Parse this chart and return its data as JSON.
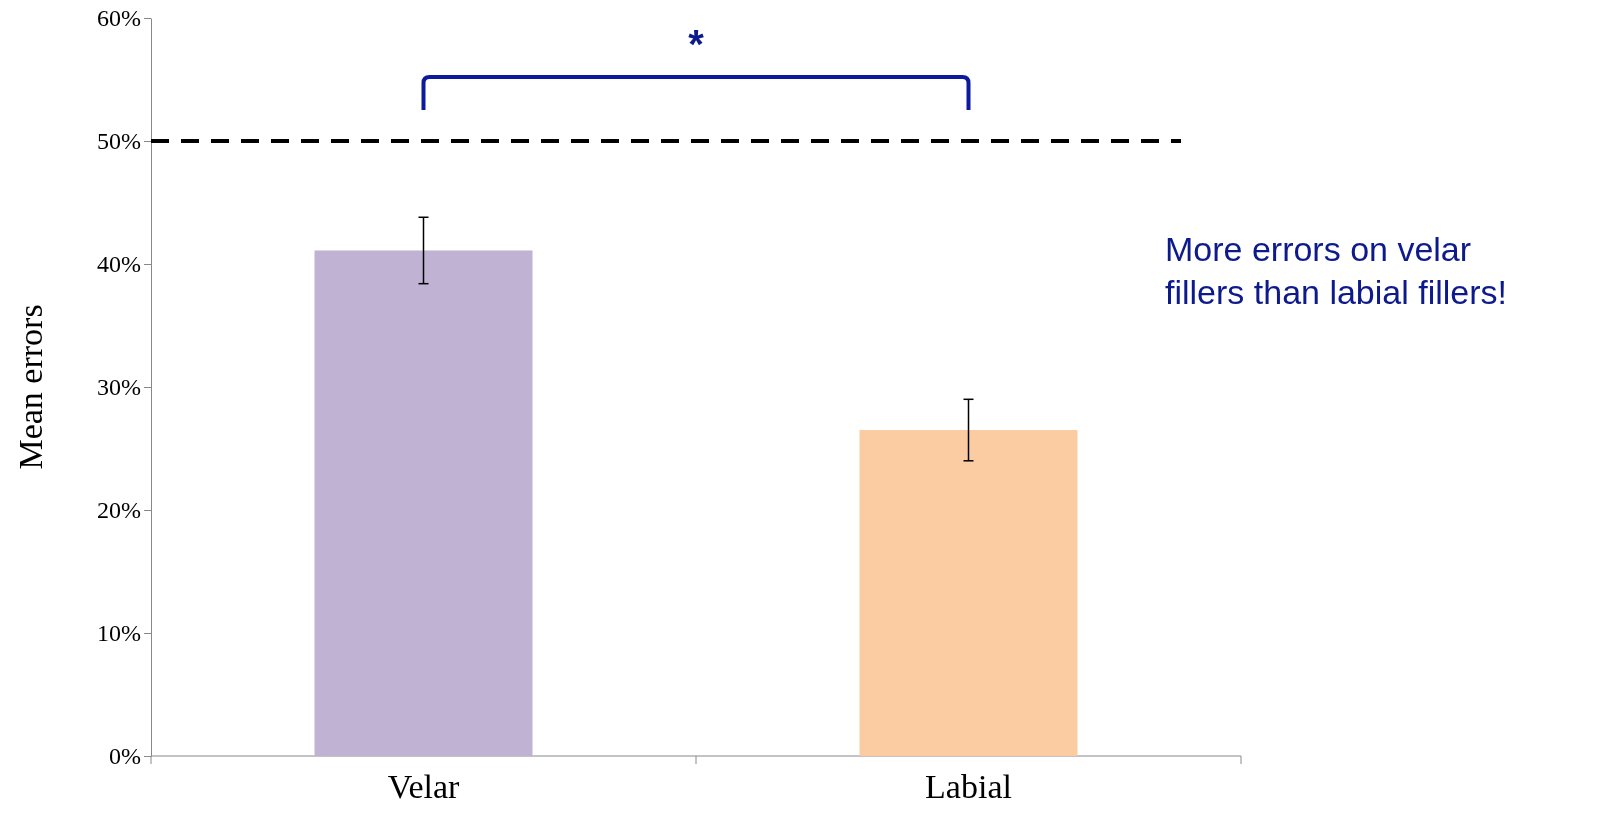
{
  "chart_data": {
    "type": "bar",
    "ylabel": "Mean errors",
    "categories": [
      "Velar",
      "Labial"
    ],
    "values": [
      41.1,
      26.5
    ],
    "colors": [
      "#c0b2d3",
      "#fbcba2"
    ],
    "errors": [
      2.7,
      2.5
    ],
    "ylim": [
      0,
      60
    ],
    "yticks": [
      {
        "value": 0,
        "label": "0%"
      },
      {
        "value": 10,
        "label": "10%"
      },
      {
        "value": 20,
        "label": "20%"
      },
      {
        "value": 30,
        "label": "30%"
      },
      {
        "value": 40,
        "label": "40%"
      },
      {
        "value": 50,
        "label": "50%"
      },
      {
        "value": 60,
        "label": "60%"
      }
    ],
    "ref_lines": [
      {
        "axis": "y",
        "value": 50,
        "color": "#000000",
        "line_style": "dashed"
      }
    ],
    "annotations": [
      "*",
      "More errors on velar fillers than labial fillers!"
    ],
    "grid": false
  }
}
